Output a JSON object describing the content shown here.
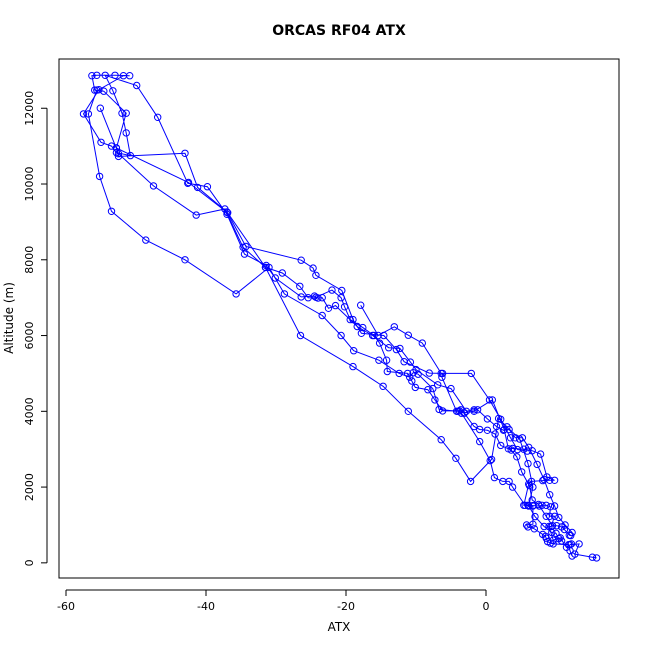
{
  "chart_data": {
    "type": "line",
    "title": "ORCAS RF04 ATX",
    "xlabel": "ATX",
    "ylabel": "Altitude (m)",
    "xlim": [
      -61,
      19
    ],
    "ylim": [
      -400,
      13300
    ],
    "xticks": [
      -60,
      -40,
      -20,
      0
    ],
    "yticks": [
      0,
      2000,
      4000,
      6000,
      8000,
      10000,
      12000
    ],
    "grid": false,
    "colors": {
      "series": "#0000ff"
    },
    "series": [
      {
        "x": [
          15.8,
          15.2,
          12.7,
          13.3,
          12.0,
          12.2,
          11.5,
          10.6,
          9.6,
          9.0,
          9.3,
          9.8,
          9.1,
          9.2,
          8.6,
          8.0,
          7.6,
          6.7,
          6.0,
          5.4,
          6.1,
          6.5,
          8.1,
          9.1,
          9.8,
          8.7,
          7.8,
          6.6,
          5.4,
          3.8,
          3.2,
          2.6,
          0.9,
          -1.7,
          -3.1,
          -3.6,
          -4.2,
          -6.3,
          -6.2,
          -8.1,
          -11.7,
          -12.8,
          -14.6,
          -17.8,
          -19.0,
          -20.6,
          -24.3,
          -24.7,
          -26.4,
          -34.3,
          -37.0,
          -41.2,
          -43.0,
          -52.5,
          -52.8,
          -51.4,
          -54.6,
          -55.9,
          -56.3,
          -55.6,
          -53.0,
          -50.9,
          -51.8,
          -55.3,
          -57.5,
          -55.0,
          -53.5,
          -52.8,
          -50.8,
          -51.4,
          -52.0,
          -53.3,
          -54.4,
          -49.9,
          -46.9,
          -42.6,
          -39.8,
          -37.0,
          -34.5,
          -31.4,
          -30.1,
          -26.4,
          -24.5,
          -24.3,
          -22.0,
          -20.7,
          -20.2,
          -19.4,
          -17.6,
          -16.0,
          -15.2,
          -14.2,
          -14.1,
          -11.2,
          -10.6,
          -10.1,
          -8.3,
          -7.3,
          -6.2,
          -3.8,
          -3.1,
          -1.7,
          -0.9,
          0.2,
          1.3,
          2.1,
          3.6,
          4.4,
          5.1,
          6.2,
          6.6,
          7.5,
          8.6,
          9.5,
          10.1,
          10.8,
          11.2,
          11.9,
          12.1
        ],
        "y": [
          130,
          150,
          230,
          500,
          480,
          500,
          410,
          660,
          600,
          960,
          960,
          1230,
          1230,
          1480,
          1520,
          1520,
          1500,
          1510,
          1520,
          1520,
          2080,
          2150,
          2170,
          2180,
          2180,
          2270,
          2870,
          2960,
          3000,
          3020,
          3010,
          3520,
          4300,
          4000,
          3960,
          4040,
          4000,
          4900,
          5000,
          5010,
          5310,
          5630,
          6000,
          6060,
          6420,
          7190,
          7590,
          7780,
          7990,
          8350,
          9260,
          9910,
          10810,
          10730,
          10950,
          11870,
          12450,
          12480,
          12860,
          12870,
          12870,
          12860,
          12860,
          12490,
          11850,
          11100,
          11000,
          10830,
          10750,
          11350,
          11870,
          12460,
          12870,
          12600,
          11760,
          10020,
          9930,
          9200,
          8150,
          7850,
          7520,
          7020,
          7040,
          7010,
          7200,
          7000,
          6760,
          6420,
          6210,
          6000,
          5800,
          5350,
          5050,
          5000,
          4800,
          4630,
          4570,
          4300,
          4010,
          4010,
          3950,
          3600,
          3520,
          3500,
          3400,
          3100,
          2980,
          2800,
          2400,
          2040,
          1660,
          1540,
          1230,
          980,
          980,
          950,
          880,
          730,
          720
        ]
      },
      {
        "x": [
          -55.6,
          -56.8,
          -55.2,
          -53.5,
          -48.6,
          -43.0,
          -35.7,
          -31.0,
          -28.8,
          -23.4,
          -20.7,
          -18.9,
          -15.3,
          -12.4,
          -10.9,
          -10.4,
          -9.7,
          -7.6,
          -6.7,
          -4.0,
          -3.5,
          -0.9,
          0.6,
          1.2,
          2.4,
          3.3,
          3.8,
          5.6,
          6.7,
          6.7,
          5.8,
          6.0,
          6.9,
          8.1,
          8.5,
          8.6,
          8.8,
          9.2,
          9.6,
          11.8,
          12.0,
          12.3
        ],
        "y": [
          12480,
          11850,
          10200,
          9280,
          8520,
          8000,
          7100,
          7800,
          7100,
          6530,
          6000,
          5600,
          5350,
          5000,
          4900,
          5020,
          4980,
          4600,
          4050,
          4000,
          3950,
          3200,
          2700,
          2250,
          2150,
          2150,
          2000,
          1520,
          1500,
          1020,
          1000,
          950,
          900,
          750,
          700,
          650,
          560,
          520,
          500,
          480,
          320,
          180
        ]
      },
      {
        "x": [
          -55.1,
          -52.5,
          -47.5,
          -41.4,
          -37.3,
          -34.7,
          -31.5,
          -29.1,
          -26.6,
          -25.4,
          -24.0,
          -23.4,
          -22.5,
          -21.5,
          -18.4,
          -16.2,
          -13.9,
          -12.3,
          -10.8,
          -10.0,
          -6.9,
          -5.0,
          -2.8,
          -1.7,
          -1.2,
          0.2,
          1.5,
          2.5,
          3.3,
          4.2,
          5.2,
          6.1,
          7.3,
          8.3,
          9.1,
          9.8,
          10.4,
          11.3,
          12.3
        ],
        "y": [
          12000,
          10800,
          9950,
          9180,
          9340,
          8330,
          7800,
          7650,
          7300,
          7000,
          6990,
          7000,
          6720,
          6790,
          6240,
          6000,
          5680,
          5660,
          5300,
          5100,
          4700,
          4600,
          4000,
          4040,
          4040,
          3800,
          3600,
          3500,
          3520,
          3300,
          3300,
          3050,
          2600,
          2200,
          1800,
          1500,
          1200,
          1000,
          800
        ]
      },
      {
        "x": [
          -52.8,
          -42.5,
          -36.9,
          -31.5,
          -26.5,
          -19.0,
          -14.7,
          -11.1,
          -6.4,
          -4.3,
          -2.2,
          0.8,
          1.8,
          3.0,
          4.8,
          6.0,
          6.7,
          6.1,
          7.0,
          8.3,
          9.4,
          10.0,
          10.4,
          10.8
        ],
        "y": [
          10950,
          10040,
          9240,
          7800,
          6000,
          5180,
          4660,
          4000,
          3250,
          2760,
          2150,
          2730,
          3810,
          3590,
          3270,
          2620,
          2000,
          1500,
          1220,
          960,
          800,
          780,
          640,
          580
        ]
      },
      {
        "x": [
          -17.9,
          -15.4,
          -13.1,
          -11.1,
          -9.1,
          -6.4,
          -2.1,
          0.5,
          2.1,
          3.5,
          4.5,
          5.9
        ],
        "y": [
          6800,
          6000,
          6230,
          6010,
          5800,
          5000,
          5000,
          4300,
          3790,
          3300,
          2990,
          2950
        ]
      }
    ]
  }
}
